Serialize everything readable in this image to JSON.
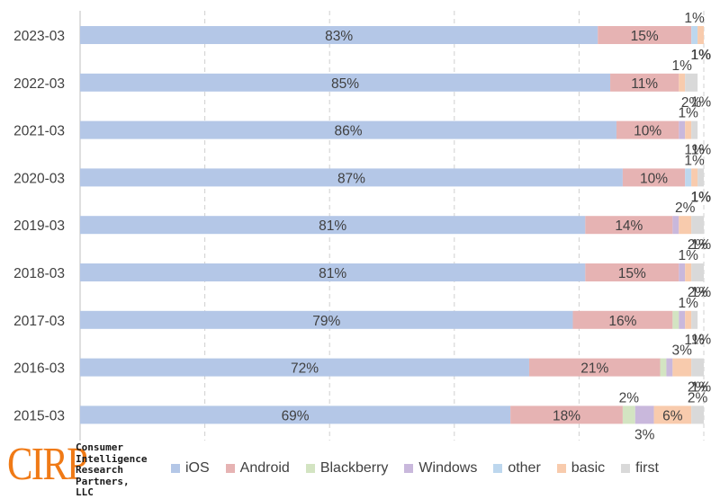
{
  "chart_data": {
    "type": "bar",
    "orientation": "horizontal",
    "stacked": true,
    "xlim": [
      0,
      100
    ],
    "grid": true,
    "legend_position": "bottom",
    "categories": [
      "2023-03",
      "2022-03",
      "2021-03",
      "2020-03",
      "2019-03",
      "2018-03",
      "2017-03",
      "2016-03",
      "2015-03"
    ],
    "series": [
      {
        "name": "iOS",
        "color": "#b4c7e7",
        "values": [
          83,
          85,
          86,
          87,
          81,
          81,
          79,
          72,
          69
        ],
        "labels": [
          "83%",
          "85%",
          "86%",
          "87%",
          "81%",
          "81%",
          "79%",
          "72%",
          "69%"
        ]
      },
      {
        "name": "Android",
        "color": "#e6b3b3",
        "values": [
          15,
          11,
          10,
          10,
          14,
          15,
          16,
          21,
          18
        ],
        "labels": [
          "15%",
          "11%",
          "10%",
          "10%",
          "14%",
          "15%",
          "16%",
          "21%",
          "18%"
        ]
      },
      {
        "name": "Blackberry",
        "color": "#d3e4c2",
        "values": [
          0,
          0,
          0,
          0,
          0,
          0,
          1,
          1,
          2
        ],
        "labels": [
          "",
          "",
          "",
          "",
          "",
          "",
          "",
          "",
          "2%"
        ]
      },
      {
        "name": "Windows",
        "color": "#c9b8dc",
        "values": [
          0,
          0,
          1,
          0,
          1,
          1,
          1,
          1,
          3
        ],
        "labels": [
          "",
          "",
          "",
          "",
          "",
          "",
          "",
          "",
          "3%"
        ]
      },
      {
        "name": "other",
        "color": "#bdd7ee",
        "values": [
          1,
          0,
          0,
          1,
          0,
          0,
          0,
          0,
          0
        ],
        "labels": [
          "1%",
          "",
          "",
          "",
          "",
          "",
          "",
          "",
          ""
        ]
      },
      {
        "name": "basic",
        "color": "#f8cbad",
        "values": [
          1,
          1,
          1,
          1,
          2,
          1,
          1,
          3,
          6
        ],
        "labels": [
          "1%",
          "1%",
          "1%",
          "1%",
          "2%",
          "1%",
          "1%",
          "3%",
          "6%"
        ]
      },
      {
        "name": "first",
        "color": "#d9d9d9",
        "values": [
          0,
          2,
          1,
          1,
          2,
          2,
          1,
          2,
          2
        ],
        "labels": [
          "",
          "2%",
          "1%",
          "1%",
          "2%",
          "2%",
          "1%",
          "2%",
          "2%"
        ]
      }
    ],
    "extra_labels": [
      "1%",
      "1%",
      "1%",
      "1%",
      "1%",
      "1%",
      "1%",
      "1%"
    ]
  },
  "branding": {
    "logo": "CIRP",
    "lines": [
      "Consumer",
      "Intelligence",
      "Research",
      "Partners, LLC"
    ]
  }
}
